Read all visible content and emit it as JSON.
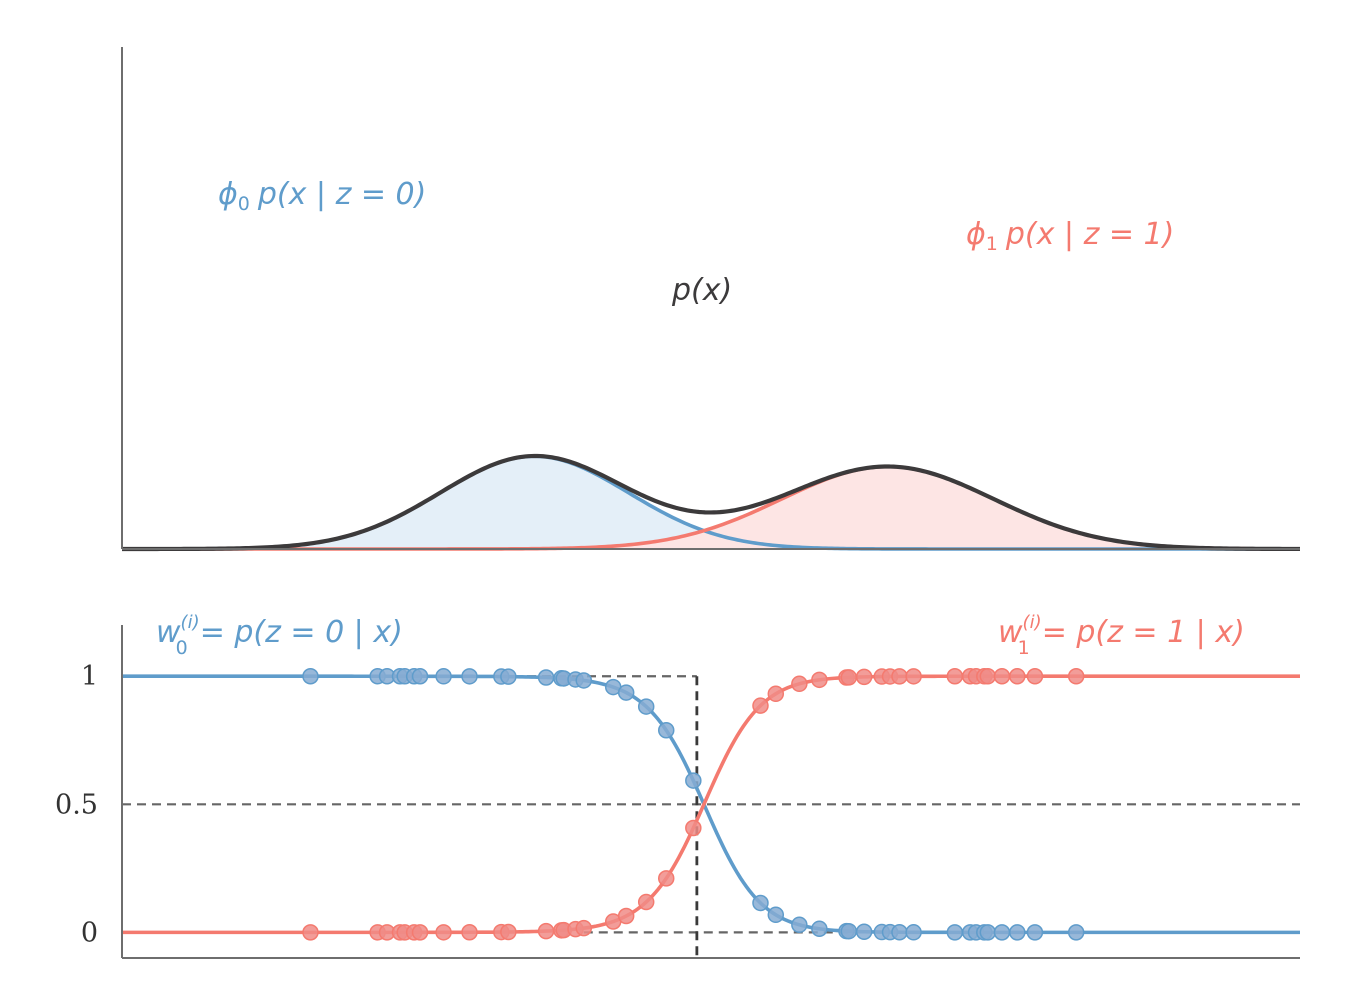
{
  "chart_data": [
    {
      "type": "area",
      "xlim": [
        -5,
        5
      ],
      "ylim": [
        0,
        1.35
      ],
      "components": [
        {
          "name": "component-0",
          "weight": 0.5,
          "mean": -1.5,
          "std": 0.8,
          "color": "#5f9ccb",
          "fill": "#e4eff8"
        },
        {
          "name": "component-1",
          "weight": 0.5,
          "mean": 1.5,
          "std": 0.9,
          "color": "#f47a6f",
          "fill": "#fde5e4"
        }
      ],
      "mixture_color": "#3c3a3b",
      "labels": {
        "phi0": {
          "phi": "ϕ",
          "sub": "0",
          "expr": "p(x | z = 0)"
        },
        "phi1": {
          "phi": "ϕ",
          "sub": "1",
          "expr": "p(x | z = 1)"
        },
        "px": "p(x)"
      },
      "grid": false
    },
    {
      "type": "line",
      "xlim": [
        -5,
        5
      ],
      "ylim": [
        -0.1,
        1.2
      ],
      "yticks": [
        {
          "value": 0,
          "label": "0"
        },
        {
          "value": 0.5,
          "label": "0.5"
        },
        {
          "value": 1,
          "label": "1"
        }
      ],
      "decision_boundary": -0.12,
      "hlines": [
        0,
        0.5,
        1
      ],
      "series": [
        {
          "key": "w0",
          "color": "#5f9ccb",
          "point_color": "#86acd2",
          "label": {
            "w": "w",
            "sub": "0",
            "sup": "(i)",
            "expr": "= p(z = 0 | x)"
          }
        },
        {
          "key": "w1",
          "color": "#f47a6f",
          "point_color": "#f08c87",
          "label": {
            "w": "w",
            "sub": "1",
            "sup": "(i)",
            "expr": "= p(z = 1 | x)"
          }
        }
      ],
      "points_x": [
        -3.4,
        -2.83,
        -2.75,
        -2.64,
        -2.6,
        -2.52,
        -2.47,
        -2.27,
        -2.05,
        -1.78,
        -1.72,
        -1.4,
        -1.27,
        -1.25,
        -1.15,
        -1.08,
        -0.83,
        -0.72,
        -0.55,
        -0.38,
        -0.15,
        0.42,
        0.55,
        0.75,
        0.92,
        1.15,
        1.17,
        1.3,
        1.45,
        1.52,
        1.6,
        1.72,
        2.07,
        2.2,
        2.25,
        2.32,
        2.35,
        2.47,
        2.6,
        2.75,
        3.1
      ]
    }
  ]
}
